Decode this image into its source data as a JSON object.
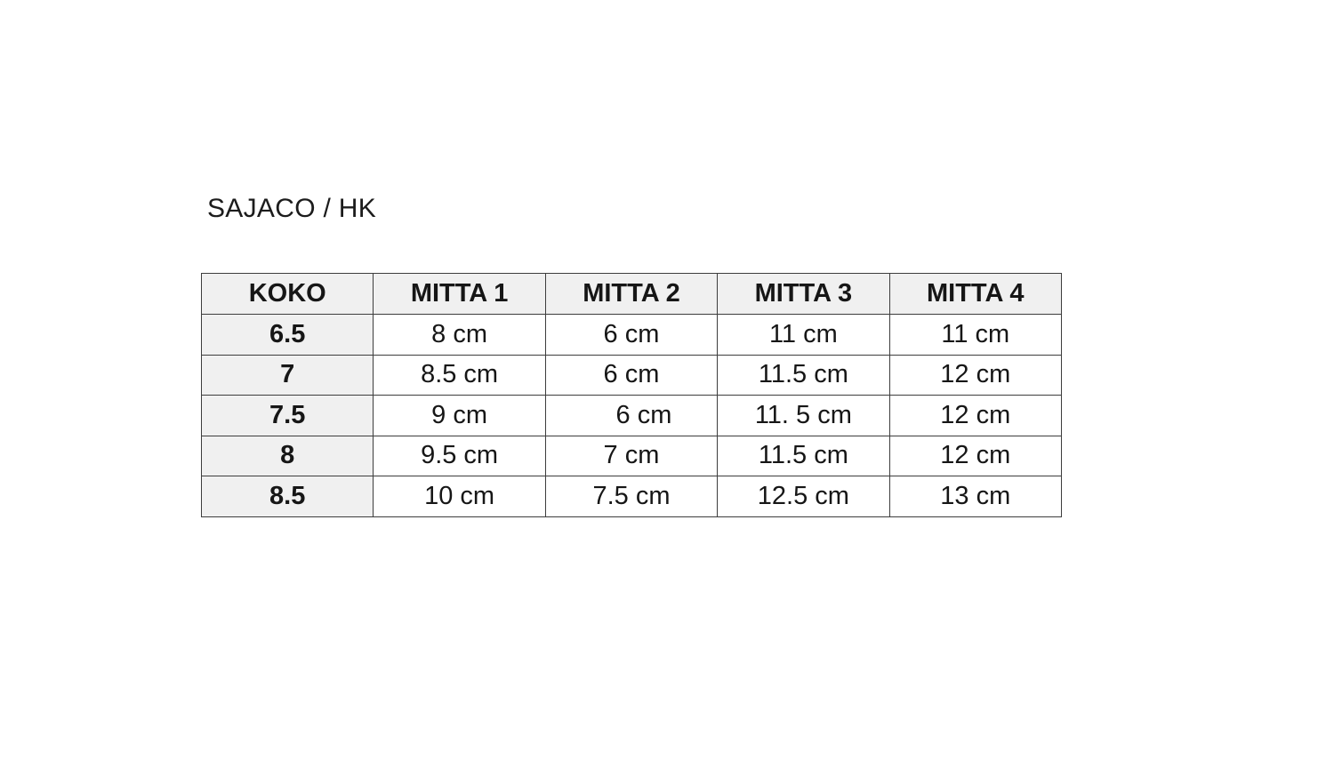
{
  "page": {
    "title": "SAJACO / HK"
  },
  "table": {
    "columns": [
      "KOKO",
      "MITTA 1",
      "MITTA 2",
      "MITTA 3",
      "MITTA 4"
    ],
    "rows": [
      [
        "6.5",
        "8 cm",
        "6 cm",
        "11 cm",
        "11 cm"
      ],
      [
        "7",
        "8.5 cm",
        "6 cm",
        "11.5 cm",
        "12 cm"
      ],
      [
        "7.5",
        "9 cm",
        "6 cm",
        "11. 5 cm",
        "12 cm"
      ],
      [
        "8",
        "9.5 cm",
        "7 cm",
        "11.5 cm",
        "12 cm"
      ],
      [
        "8.5",
        "10 cm",
        "7.5 cm",
        "12.5 cm",
        "13 cm"
      ]
    ],
    "colors": {
      "header_fill": "#f0f0f0",
      "size_column_fill": "#f0f0f0",
      "cell_fill": "#ffffff",
      "border": "#3d3d3d",
      "text": "#161616"
    }
  }
}
